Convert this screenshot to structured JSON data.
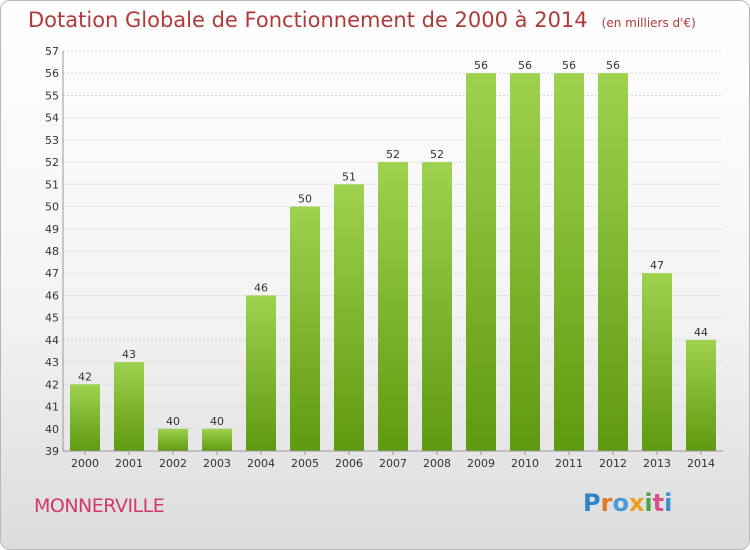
{
  "title": "Dotation Globale de Fonctionnement de 2000 à 2014",
  "unit_note": "(en milliers d'€)",
  "commune": "MONNERVILLE",
  "logo": {
    "text": "Proxiti",
    "colors": [
      "#2f84c8",
      "#e07a2a",
      "#4a9bd8",
      "#e8a01e",
      "#4fa33a",
      "#d94f8a",
      "#3c8fd0"
    ]
  },
  "colors": {
    "bar_top": "#9fd24f",
    "bar_bottom": "#5e9a10",
    "title": "#b03a3a",
    "commune": "#d03a6a"
  },
  "chart_data": {
    "type": "bar",
    "title": "Dotation Globale de Fonctionnement de 2000 à 2014",
    "subtitle": "(en milliers d'€)",
    "xlabel": "",
    "ylabel": "",
    "ylim": [
      39,
      57
    ],
    "yticks": [
      39,
      40,
      41,
      42,
      43,
      44,
      45,
      46,
      47,
      48,
      49,
      50,
      51,
      52,
      53,
      54,
      55,
      56,
      57
    ],
    "grid": true,
    "categories": [
      "2000",
      "2001",
      "2002",
      "2003",
      "2004",
      "2005",
      "2006",
      "2007",
      "2008",
      "2009",
      "2010",
      "2011",
      "2012",
      "2013",
      "2014"
    ],
    "values": [
      42,
      43,
      40,
      40,
      46,
      50,
      51,
      52,
      52,
      56,
      56,
      56,
      56,
      47,
      44
    ]
  }
}
